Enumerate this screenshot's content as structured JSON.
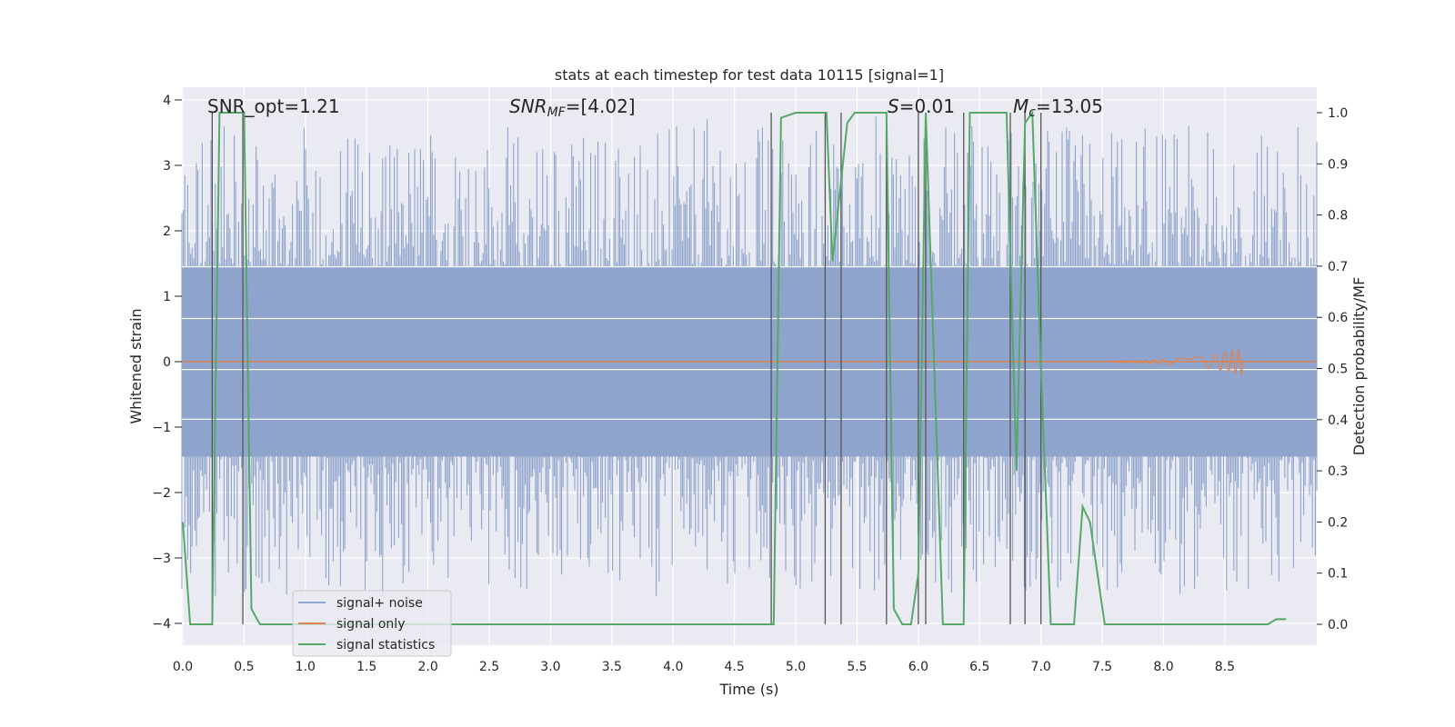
{
  "chart_data": {
    "type": "line",
    "title": "stats at each timestep for test data 10115 [signal=1]",
    "xlabel": "Time (s)",
    "ylabel": "Whitened strain",
    "ylabel_right": "Detection probability/MF",
    "xlim": [
      0.0,
      9.0
    ],
    "ylim": [
      -4.2,
      4.2
    ],
    "ylim_right": [
      -0.05,
      1.05
    ],
    "xticks": [
      "0.0",
      "0.5",
      "1.0",
      "1.5",
      "2.0",
      "2.5",
      "3.0",
      "3.5",
      "4.0",
      "4.5",
      "5.0",
      "5.5",
      "6.0",
      "6.5",
      "7.0",
      "7.5",
      "8.0",
      "8.5"
    ],
    "yticks": [
      "−4",
      "−3",
      "−2",
      "−1",
      "0",
      "1",
      "2",
      "3",
      "4"
    ],
    "yticks_right": [
      "0.0",
      "0.1",
      "0.2",
      "0.3",
      "0.4",
      "0.5",
      "0.6",
      "0.7",
      "0.8",
      "0.9",
      "1.0"
    ],
    "grid": true,
    "legend_position": "lower-left",
    "annotations": {
      "snr_opt": "SNR_opt=1.21",
      "snr_mf_main": "SNR",
      "snr_mf_sub": "MF",
      "snr_mf_value": "=[4.02]",
      "s_label": "S",
      "s_value": "=0.01",
      "mc_main": "M",
      "mc_sub": "c",
      "mc_value": "=13.05"
    },
    "series": [
      {
        "name": "signal+ noise",
        "axis": "left",
        "color": "#8fa4cc",
        "note_amplitude_range": [
          -3.8,
          3.8
        ]
      },
      {
        "name": "signal only",
        "axis": "left",
        "color": "#dd8452",
        "chirp_end": 8.65
      },
      {
        "name": "signal statistics",
        "axis": "right",
        "color": "#55a868",
        "x": [
          0.0,
          0.06,
          0.15,
          0.24,
          0.3,
          0.5,
          0.56,
          0.63,
          0.8,
          1.0,
          4.78,
          4.82,
          4.88,
          5.0,
          5.25,
          5.3,
          5.42,
          5.48,
          5.74,
          5.8,
          5.87,
          5.94,
          6.0,
          6.06,
          6.2,
          6.37,
          6.42,
          6.72,
          6.8,
          6.87,
          6.93,
          7.0,
          7.08,
          7.13,
          7.27,
          7.34,
          7.4,
          7.52,
          7.58,
          7.7,
          8.85,
          8.92,
          9.0
        ],
        "y": [
          0.2,
          0.0,
          0.0,
          0.0,
          1.0,
          1.0,
          0.03,
          0.0,
          0.0,
          0.0,
          0.0,
          0.0,
          0.99,
          1.0,
          1.0,
          0.71,
          0.98,
          1.0,
          1.0,
          0.03,
          0.0,
          0.0,
          0.1,
          1.0,
          0.0,
          0.0,
          1.0,
          1.0,
          0.3,
          0.98,
          1.0,
          0.5,
          0.0,
          0.0,
          0.0,
          0.23,
          0.2,
          0.0,
          0.0,
          0.0,
          0.0,
          0.01,
          0.01
        ]
      }
    ],
    "vlines": [
      0.24,
      0.49,
      4.8,
      5.24,
      5.37,
      5.74,
      6.0,
      6.06,
      6.37,
      6.75,
      6.87,
      7.0
    ]
  }
}
